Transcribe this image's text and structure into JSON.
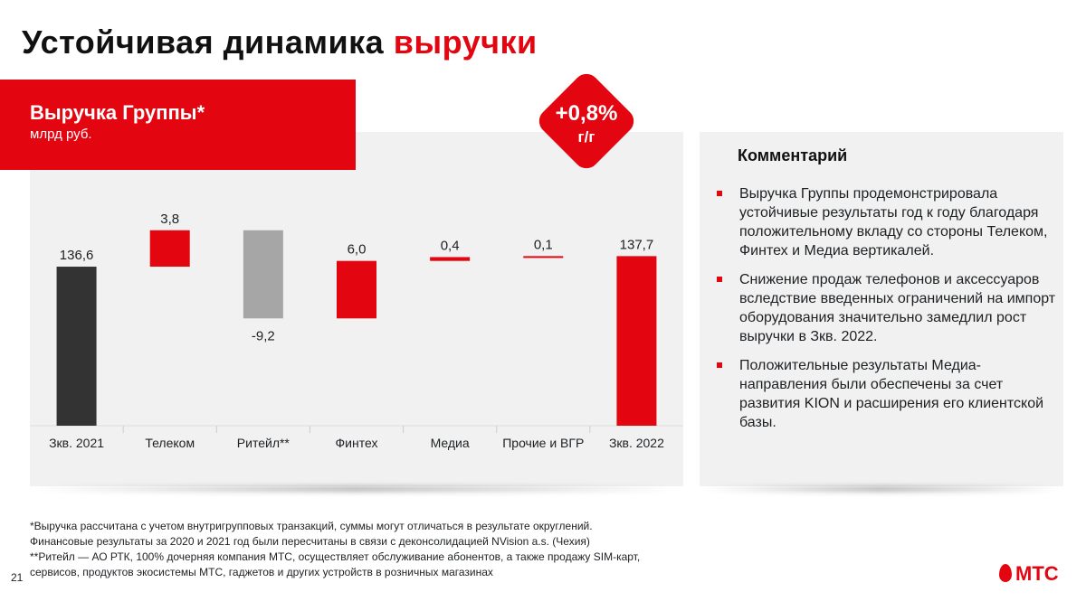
{
  "slide": {
    "title_main": "Устойчивая динамика",
    "title_accent": "выручки",
    "page_number": "21"
  },
  "colors": {
    "accent": "#e30611",
    "dark_bar": "#333333",
    "gray_bar": "#a6a6a6",
    "panel_bg": "#f1f1f1"
  },
  "chart_header": {
    "title": "Выручка Группы*",
    "unit": "млрд руб."
  },
  "badge": {
    "value": "+0,8%",
    "period": "г/г"
  },
  "chart_data": {
    "type": "bar",
    "subtype": "waterfall",
    "title": "Выручка Группы*",
    "unit": "млрд руб.",
    "categories": [
      "Зкв. 2021",
      "Телеком",
      "Ритейл**",
      "Финтех",
      "Медиа",
      "Прочие и ВГР",
      "Зкв. 2022"
    ],
    "values": [
      136.6,
      3.8,
      -9.2,
      6.0,
      0.4,
      0.1,
      137.7
    ],
    "labels": [
      "136,6",
      "3,8",
      "-9,2",
      "6,0",
      "0,4",
      "0,1",
      "137,7"
    ],
    "kinds": [
      "total",
      "delta",
      "delta",
      "delta",
      "delta",
      "delta",
      "total"
    ],
    "bar_colors": [
      "#333333",
      "#e30611",
      "#a6a6a6",
      "#e30611",
      "#e30611",
      "#e30611",
      "#e30611"
    ],
    "legend": "none",
    "grid": false
  },
  "commentary": {
    "title": "Комментарий",
    "bullets": [
      "Выручка Группы продемонстрировала устойчивые результаты год к году благодаря положительному вкладу со стороны Телеком, Финтех и Медиа вертикалей.",
      "Снижение продаж телефонов и аксессуаров вследствие введенных ограничений на импорт оборудования значительно замедлил рост выручки в Зкв. 2022.",
      "Положительные результаты Медиа-направления были обеспечены за счет развития KION и расширения его клиентской базы."
    ]
  },
  "footnotes": [
    "*Выручка рассчитана с учетом внутригрупповых транзакций, суммы могут отличаться в результате округлений.",
    "Финансовые результаты за 2020 и 2021 год были пересчитаны в связи с деконсолидацией NVision a.s. (Чехия)",
    "**Ритейл — АО РТК, 100% дочерняя компания МТС, осуществляет обслуживание абонентов, а также продажу SIM-карт,",
    "сервисов, продуктов экосистемы МТС, гаджетов и других устройств в розничных магазинах"
  ],
  "logo": {
    "text": "МТС"
  }
}
